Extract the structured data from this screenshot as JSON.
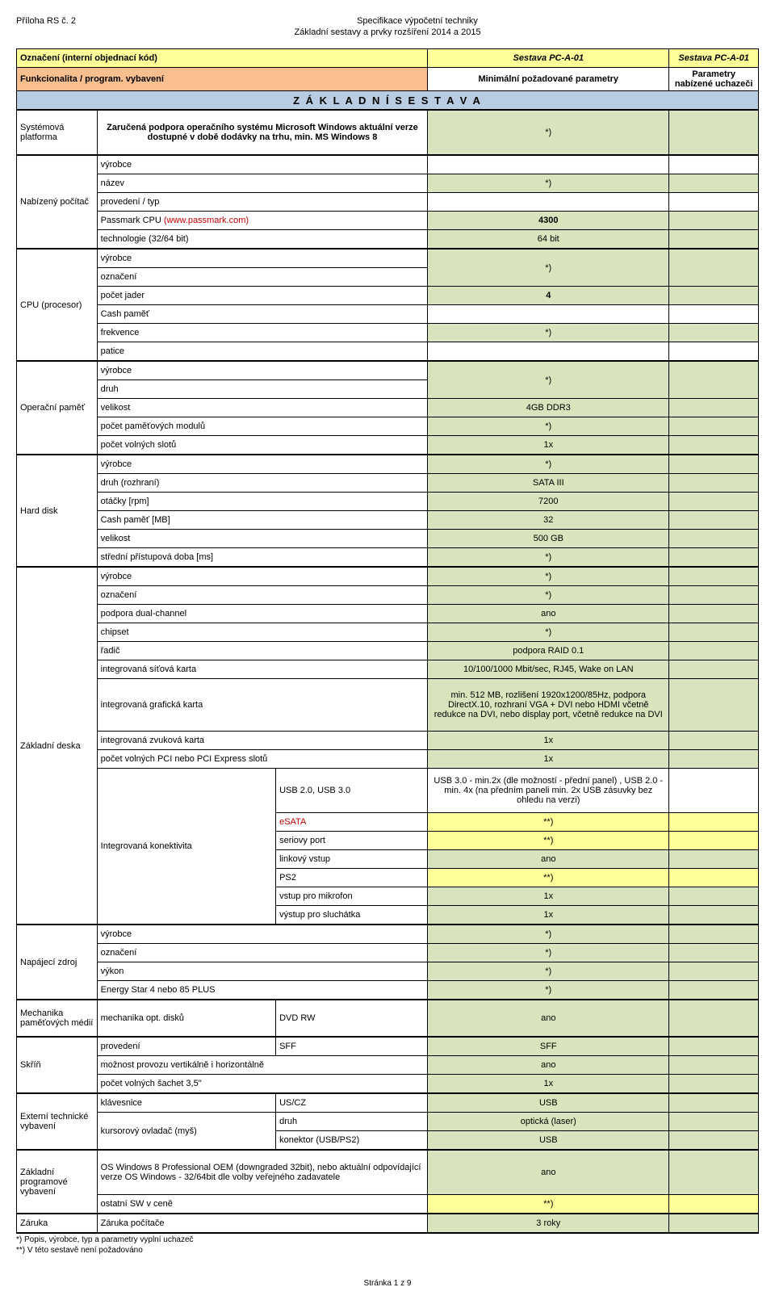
{
  "header": {
    "left": "Příloha RS č. 2",
    "center1": "Specifikace výpočetní techniky",
    "center2": "Základní sestavy a prvky rozšíření 2014 a 2015"
  },
  "titleRow": {
    "label": "Označení (interní objednací kód)",
    "val1": "Sestava PC-A-01",
    "val2": "Sestava PC-A-01"
  },
  "funcRow": {
    "label": "Funkcionalita / program. vybavení",
    "val1": "Minimální požadované parametry",
    "val2": "Parametry nabízené uchazeči"
  },
  "band": "Z Á K L A D N Í   S E S T A V A",
  "platform": {
    "cat": "Systémová platforma",
    "text": "Zaručená podpora operačního systému Microsoft Windows aktuální verze dostupné v době dodávky na trhu, min. MS Windows 8",
    "val": "*)"
  },
  "pc": {
    "cat": "Nabízený počítač",
    "rows": [
      {
        "l": "výrobce",
        "v": "",
        "c": "white"
      },
      {
        "l": "název",
        "v": "*)",
        "c": "green"
      },
      {
        "l": "provedení / typ",
        "v": "",
        "c": "white"
      },
      {
        "l": "Passmark CPU (www.passmark.com)",
        "v": "4300",
        "c": "green",
        "red": true,
        "bold": true
      },
      {
        "l": "technologie (32/64 bit)",
        "v": "64 bit",
        "c": "green"
      }
    ]
  },
  "cpu": {
    "cat": "CPU (procesor)",
    "rows": [
      {
        "l": "výrobce",
        "v": "*)",
        "c": "green",
        "rs": 2
      },
      {
        "l": "označení",
        "v": "",
        "c": "cont"
      },
      {
        "l": "počet jader",
        "v": "4",
        "c": "green",
        "bold": true
      },
      {
        "l": "Cash paměť",
        "v": "",
        "c": "white"
      },
      {
        "l": "frekvence",
        "v": "*)",
        "c": "green"
      },
      {
        "l": "patice",
        "v": "",
        "c": "white"
      }
    ]
  },
  "mem": {
    "cat": "Operační paměť",
    "rows": [
      {
        "l": "výrobce",
        "v": "*)",
        "c": "green",
        "rs": 2
      },
      {
        "l": "druh",
        "v": "",
        "c": "cont"
      },
      {
        "l": "velikost",
        "v": "4GB DDR3",
        "c": "green"
      },
      {
        "l": "počet paměťových modulů",
        "v": "*)",
        "c": "green"
      },
      {
        "l": "počet volných slotů",
        "v": "1x",
        "c": "green"
      }
    ]
  },
  "hdd": {
    "cat": "Hard disk",
    "rows": [
      {
        "l": "výrobce",
        "v": "*)",
        "c": "green"
      },
      {
        "l": "druh (rozhraní)",
        "v": "SATA III",
        "c": "green"
      },
      {
        "l": "otáčky [rpm]",
        "v": "7200",
        "c": "green"
      },
      {
        "l": "Cash paměť [MB]",
        "v": "32",
        "c": "green"
      },
      {
        "l": "velikost",
        "v": "500 GB",
        "c": "green"
      },
      {
        "l": "střední přístupová doba [ms]",
        "v": "*)",
        "c": "green"
      }
    ]
  },
  "mb": {
    "cat": "Základní deska",
    "rows1": [
      {
        "l": "výrobce",
        "v": "*)",
        "c": "green"
      },
      {
        "l": "označení",
        "v": "*)",
        "c": "green"
      },
      {
        "l": "podpora dual-channel",
        "v": "ano",
        "c": "green"
      },
      {
        "l": "chipset",
        "v": "*)",
        "c": "green"
      },
      {
        "l": "řadič",
        "v": "podpora RAID 0.1",
        "c": "green"
      },
      {
        "l": "integrovaná síťová karta",
        "v": "10/100/1000 Mbit/sec, RJ45, Wake on LAN",
        "c": "green"
      }
    ],
    "gfx": {
      "l": "integrovaná grafická karta",
      "v": "min. 512 MB, rozlišení 1920x1200/85Hz, podpora DirectX.10,  rozhraní VGA + DVI nebo HDMI včetně redukce na DVI, nebo display port, včetně redukce na DVI"
    },
    "rows2": [
      {
        "l": "integrovaná zvuková karta",
        "v": "1x",
        "c": "green"
      },
      {
        "l": "počet volných PCI nebo PCI Express slotů",
        "v": "1x",
        "c": "green"
      }
    ],
    "conn_cat": "Integrovaná konektivita",
    "conn": [
      {
        "l": "USB 2.0, USB 3.0",
        "v": "USB 3.0 - min.2x (dle možností - přední panel) , USB 2.0 - min. 4x (na předním paneli min. 2x USB zásuvky bez ohledu na verzi)",
        "c": "white"
      },
      {
        "l": "eSATA",
        "v": "**)",
        "c": "yellow",
        "red": true
      },
      {
        "l": "seriovy port",
        "v": "**)",
        "c": "yellow"
      },
      {
        "l": "linkový vstup",
        "v": "ano",
        "c": "green"
      },
      {
        "l": "PS2",
        "v": "**)",
        "c": "yellow"
      },
      {
        "l": "vstup pro mikrofon",
        "v": "1x",
        "c": "green"
      },
      {
        "l": "výstup pro sluchátka",
        "v": "1x",
        "c": "green"
      }
    ]
  },
  "psu": {
    "cat": "Napájecí zdroj",
    "rows": [
      {
        "l": "výrobce",
        "v": "*)",
        "c": "green"
      },
      {
        "l": "označení",
        "v": "*)",
        "c": "green"
      },
      {
        "l": "výkon",
        "v": "*)",
        "c": "green"
      },
      {
        "l": "Energy Star 4 nebo 85 PLUS",
        "v": "*)",
        "c": "green"
      }
    ]
  },
  "opt": {
    "cat": "Mechanika paměťových médií",
    "l": "mechanika opt. disků",
    "s": "DVD RW",
    "v": "ano"
  },
  "case": {
    "cat": "Skříň",
    "rows": [
      {
        "l": "provedení",
        "s": "SFF",
        "v": "SFF",
        "c": "green"
      },
      {
        "l": "možnost provozu vertikálně i horizontálně",
        "s": "",
        "v": "ano",
        "c": "green",
        "span": true
      },
      {
        "l": "počet volných šachet 3,5\"",
        "s": "",
        "v": "1x",
        "c": "green",
        "span": true
      }
    ]
  },
  "ext": {
    "cat": "Externí technické vybavení",
    "rows": [
      {
        "l": "klávesnice",
        "s": "US/CZ",
        "v": "USB",
        "c": "green"
      },
      {
        "l": "kursorový ovladač (myš)",
        "s": "druh",
        "v": "optická (laser)",
        "c": "green",
        "rs": 2
      },
      {
        "l": "",
        "s": "konektor (USB/PS2)",
        "v": "USB",
        "c": "green",
        "cont": true
      }
    ]
  },
  "sw": {
    "cat": "Základní programové vybavení",
    "l": "OS Windows 8 Professional OEM (downgraded 32bit), nebo aktuální odpovídající verze OS Windows - 32/64bit dle volby veřejného zadavatele",
    "v": "ano",
    "l2": "ostatní SW v ceně",
    "v2": "**)"
  },
  "warranty": {
    "cat": "Záruka",
    "l": "Záruka počítače",
    "v": "3 roky"
  },
  "footnotes": {
    "f1": "*) Popis, výrobce, typ a parametry vyplní uchazeč",
    "f2": "**) V této sestavě není požadováno"
  },
  "footer": "Stránka 1 z 9"
}
